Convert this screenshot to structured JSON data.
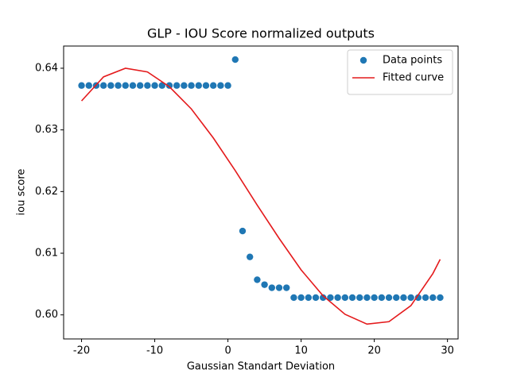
{
  "chart_data": {
    "type": "line",
    "title": "GLP - IOU Score normalized outputs",
    "x_label": "Gaussian  Standart Deviation",
    "y_label": "iou score",
    "xlim": [
      -22.45,
      31.45
    ],
    "ylim": [
      0.5961,
      0.6436
    ],
    "xticks": [
      -20,
      -10,
      0,
      10,
      20,
      30
    ],
    "yticks": [
      {
        "value": 0.6,
        "label": "0.60"
      },
      0.61,
      0.62,
      0.63,
      0.64
    ],
    "legend": "upper right",
    "series": [
      {
        "name": "Data points",
        "type": "scatter",
        "color": "#1f77b4",
        "x": [
          -20,
          -19,
          -18,
          -17,
          -16,
          -15,
          -14,
          -13,
          -12,
          -11,
          -10,
          -9,
          -8,
          -7,
          -6,
          -5,
          -4,
          -3,
          -2,
          -1,
          0,
          1,
          2,
          3,
          4,
          5,
          6,
          7,
          8,
          9,
          10,
          11,
          12,
          13,
          14,
          15,
          16,
          17,
          18,
          19,
          20,
          21,
          22,
          23,
          24,
          25,
          26,
          27,
          28,
          29
        ],
        "values": [
          0.6372,
          0.6372,
          0.6372,
          0.6372,
          0.6372,
          0.6372,
          0.6372,
          0.6372,
          0.6372,
          0.6372,
          0.6372,
          0.6372,
          0.6372,
          0.6372,
          0.6372,
          0.6372,
          0.6372,
          0.6372,
          0.6372,
          0.6372,
          0.6372,
          0.6414,
          0.6136,
          0.6094,
          0.6057,
          0.6049,
          0.6044,
          0.6044,
          0.6044,
          0.6028,
          0.6028,
          0.6028,
          0.6028,
          0.6028,
          0.6028,
          0.6028,
          0.6028,
          0.6028,
          0.6028,
          0.6028,
          0.6028,
          0.6028,
          0.6028,
          0.6028,
          0.6028,
          0.6028,
          0.6028,
          0.6028,
          0.6028,
          0.6028
        ]
      },
      {
        "name": "Fitted curve",
        "type": "line",
        "color": "#e41a1c",
        "x": [
          -20,
          -17,
          -14,
          -11,
          -8,
          -5,
          -2,
          1,
          4,
          7,
          10,
          13,
          16,
          19,
          22,
          25,
          28,
          29
        ],
        "values": [
          0.6347,
          0.6386,
          0.64,
          0.6394,
          0.637,
          0.6334,
          0.6287,
          0.6234,
          0.6178,
          0.6124,
          0.6073,
          0.6031,
          0.6001,
          0.5985,
          0.5989,
          0.6015,
          0.6067,
          0.609
        ]
      }
    ]
  }
}
